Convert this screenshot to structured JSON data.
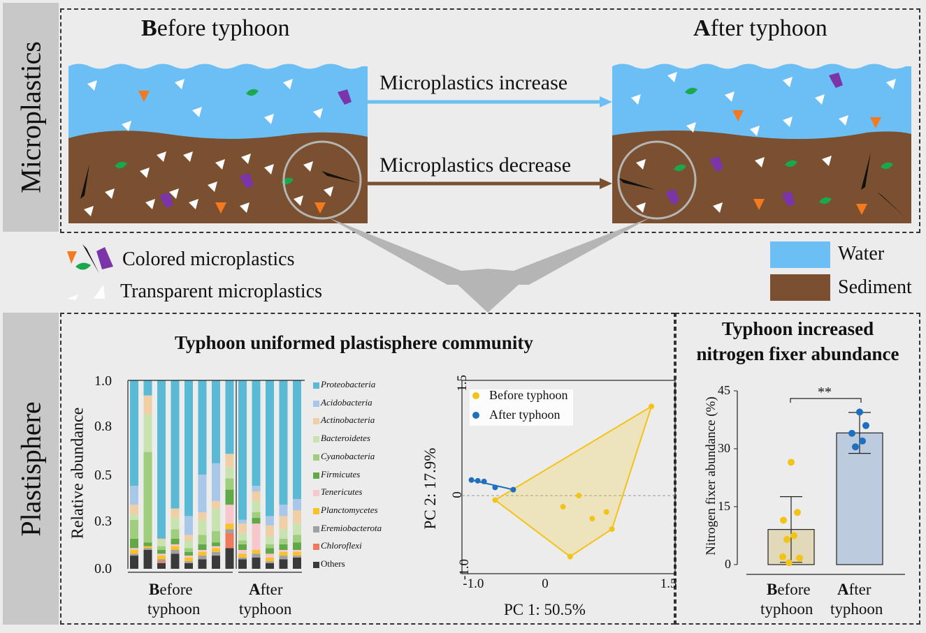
{
  "top_section": {
    "side_label": "Microplastics",
    "before_title": "Before typhoon",
    "after_title": "After typhoon",
    "arrow_water": "Microplastics increase",
    "arrow_sediment": "Microplastics decrease"
  },
  "legend": {
    "colored": "Colored microplastics",
    "transparent": "Transparent microplastics",
    "water": "Water",
    "sediment": "Sediment",
    "water_color": "#6cbff5",
    "sediment_color": "#7a5030"
  },
  "bottom_section": {
    "side_label": "Plastisphere",
    "community_title": "Typhoon uniformed plastisphere community",
    "fixer_title_line1": "Typhoon increased",
    "fixer_title_line2": "nitrogen fixer abundance"
  },
  "chart_data": [
    {
      "type": "bar",
      "stacked": true,
      "ylabel": "Relative abundance",
      "ylim": [
        0,
        1.0
      ],
      "yticks": [
        "1.0",
        "0.8",
        "0.5",
        "0.3",
        "0.0"
      ],
      "group_labels": [
        {
          "line1": "Before",
          "line2": "typhoon"
        },
        {
          "line1": "After",
          "line2": "typhoon"
        }
      ],
      "groups": [
        8,
        5
      ],
      "taxa": [
        {
          "name": "Others",
          "color": "#3a3a3a"
        },
        {
          "name": "Chloroflexi",
          "color": "#ee7a5e"
        },
        {
          "name": "Eremiobacterota",
          "color": "#a0a0a0"
        },
        {
          "name": "Planctomycetes",
          "color": "#f9c12a"
        },
        {
          "name": "Tenericutes",
          "color": "#f7c7cb"
        },
        {
          "name": "Firmicutes",
          "color": "#61a846"
        },
        {
          "name": "Cyanobacteria",
          "color": "#9fce7d"
        },
        {
          "name": "Bacteroidetes",
          "color": "#c8e3b0"
        },
        {
          "name": "Actinobacteria",
          "color": "#f0cfa6"
        },
        {
          "name": "Acidobacteria",
          "color": "#a9c7e8"
        },
        {
          "name": "Proteobacteria",
          "color": "#5ab9d4"
        }
      ],
      "legend_order": [
        "Proteobacteria",
        "Acidobacteria",
        "Actinobacteria",
        "Bacteroidetes",
        "Cyanobacteria",
        "Firmicutes",
        "Tenericutes",
        "Planctomycetes",
        "Eremiobacterota",
        "Chloroflexi",
        "Others"
      ],
      "samples": [
        [
          0.07,
          0.0,
          0.01,
          0.02,
          0.01,
          0.05,
          0.1,
          0.03,
          0.05,
          0.1,
          0.56
        ],
        [
          0.1,
          0.0,
          0.01,
          0.01,
          0.0,
          0.02,
          0.48,
          0.2,
          0.1,
          0.0,
          0.08
        ],
        [
          0.03,
          0.01,
          0.01,
          0.02,
          0.01,
          0.02,
          0.02,
          0.03,
          0.01,
          0.0,
          0.84
        ],
        [
          0.08,
          0.0,
          0.02,
          0.02,
          0.01,
          0.03,
          0.05,
          0.06,
          0.05,
          0.0,
          0.68
        ],
        [
          0.03,
          0.0,
          0.01,
          0.02,
          0.01,
          0.02,
          0.02,
          0.04,
          0.03,
          0.1,
          0.72
        ],
        [
          0.05,
          0.0,
          0.02,
          0.02,
          0.01,
          0.03,
          0.05,
          0.08,
          0.04,
          0.2,
          0.5
        ],
        [
          0.07,
          0.0,
          0.02,
          0.02,
          0.01,
          0.02,
          0.06,
          0.12,
          0.04,
          0.2,
          0.44
        ],
        [
          0.11,
          0.08,
          0.02,
          0.03,
          0.1,
          0.08,
          0.06,
          0.06,
          0.07,
          0.0,
          0.39
        ],
        [
          0.05,
          0.0,
          0.01,
          0.02,
          0.02,
          0.03,
          0.02,
          0.04,
          0.05,
          0.02,
          0.74
        ],
        [
          0.06,
          0.0,
          0.02,
          0.02,
          0.14,
          0.03,
          0.03,
          0.06,
          0.05,
          0.03,
          0.56
        ],
        [
          0.03,
          0.0,
          0.01,
          0.02,
          0.02,
          0.03,
          0.02,
          0.04,
          0.06,
          0.05,
          0.72
        ],
        [
          0.05,
          0.0,
          0.02,
          0.02,
          0.01,
          0.03,
          0.03,
          0.05,
          0.07,
          0.06,
          0.66
        ],
        [
          0.06,
          0.0,
          0.01,
          0.02,
          0.01,
          0.04,
          0.04,
          0.06,
          0.07,
          0.06,
          0.63
        ]
      ]
    },
    {
      "type": "scatter",
      "xlabel": "PC 1: 50.5%",
      "ylabel": "PC 2: 17.9%",
      "xlim": [
        -1.1,
        1.6
      ],
      "ylim": [
        -1.05,
        1.55
      ],
      "xticks": [
        {
          "v": -1.0,
          "t": "-1.0"
        },
        {
          "v": 0,
          "t": "0"
        },
        {
          "v": 1.5,
          "t": "1.5"
        }
      ],
      "yticks": [
        {
          "v": 1.5,
          "t": "1.5"
        },
        {
          "v": 0,
          "t": "0"
        },
        {
          "v": -1.0,
          "t": "-1.0"
        }
      ],
      "series": [
        {
          "name": "Before typhoon",
          "color": "#f2c318",
          "points": [
            [
              1.3,
              1.2
            ],
            [
              -0.68,
              -0.06
            ],
            [
              0.38,
              0.0
            ],
            [
              0.18,
              -0.15
            ],
            [
              0.55,
              -0.31
            ],
            [
              0.73,
              -0.22
            ],
            [
              0.8,
              -0.45
            ],
            [
              0.27,
              -0.82
            ]
          ],
          "hull": [
            [
              1.3,
              1.2
            ],
            [
              0.8,
              -0.45
            ],
            [
              0.27,
              -0.82
            ],
            [
              -0.68,
              -0.06
            ]
          ]
        },
        {
          "name": "After typhoon",
          "color": "#1f6fbf",
          "points": [
            [
              -0.98,
              0.21
            ],
            [
              -0.9,
              0.2
            ],
            [
              -0.82,
              0.19
            ],
            [
              -0.68,
              0.11
            ],
            [
              -0.45,
              0.08
            ]
          ],
          "hull": [
            [
              -0.98,
              0.21
            ],
            [
              -0.45,
              0.08
            ]
          ]
        }
      ]
    },
    {
      "type": "bar",
      "ylabel": "Nitrogen fixer abundance (%)",
      "ylim": [
        0,
        45
      ],
      "yticks": [
        0,
        15,
        30,
        45
      ],
      "significance": "**",
      "categories": [
        {
          "line1": "Before",
          "line2": "typhoon"
        },
        {
          "line1": "After",
          "line2": "typhoon"
        }
      ],
      "values": [
        9.1,
        34.1
      ],
      "errors": [
        8.5,
        5.3
      ],
      "bar_colors": [
        "#e2d9bb",
        "#bcccde"
      ],
      "point_colors": [
        "#f2c318",
        "#1f6fbf"
      ],
      "points": [
        [
          26.5,
          13.5,
          11.5,
          7.5,
          6.5,
          2.0,
          1.7,
          0.5
        ],
        [
          39.5,
          36.0,
          34.0,
          32.0,
          30.5
        ]
      ]
    }
  ]
}
